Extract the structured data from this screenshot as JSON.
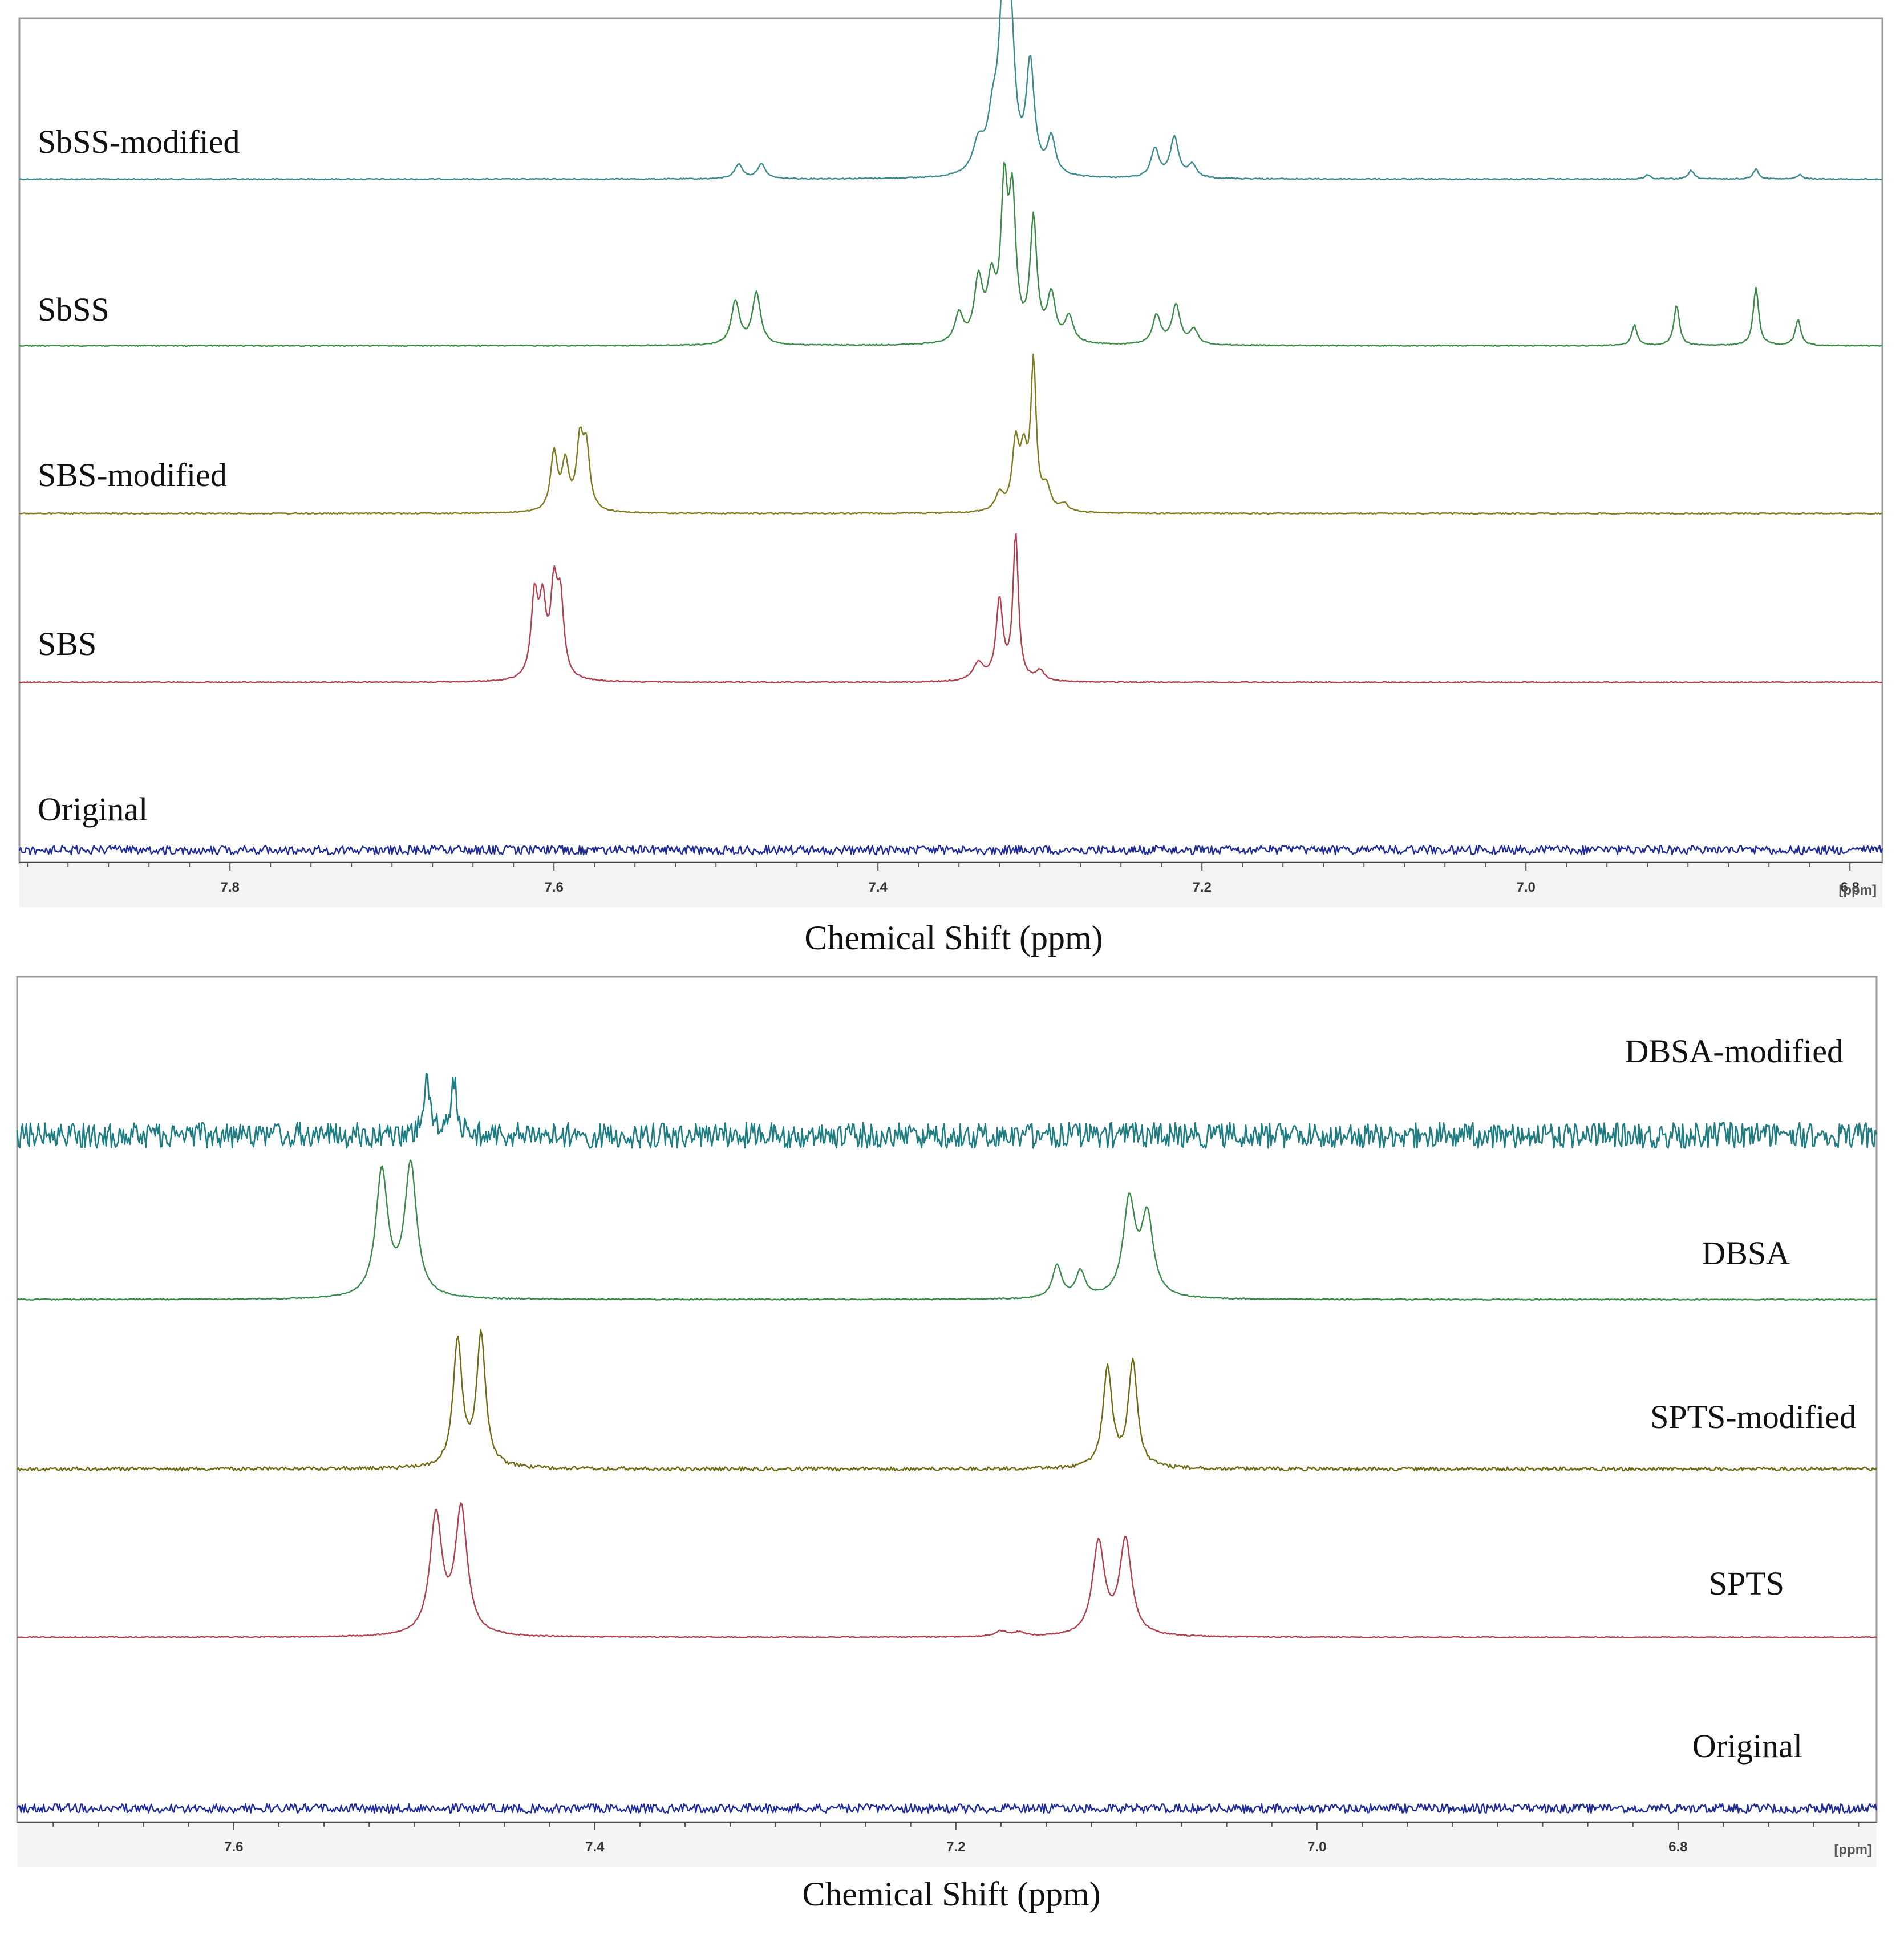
{
  "chart_data": [
    {
      "type": "line",
      "subtype": "stacked NMR spectra",
      "xlabel": "Chemical Shift (ppm)",
      "unit_label": "[ppm]",
      "xlim": [
        7.93,
        6.78
      ],
      "x_axis_reversed": true,
      "ticks": [
        7.8,
        7.6,
        7.4,
        7.2,
        7.0,
        6.8
      ],
      "tick_labels": [
        "7.8",
        "7.6",
        "7.4",
        "7.2",
        "7.0",
        "6.8"
      ],
      "label_side": "left",
      "series": [
        {
          "name": "SbSS-modified",
          "color": "#3a8a8c",
          "noise": 0.3,
          "peaks": [
            {
              "ppm": 7.486,
              "height": 0.1,
              "width": 0.003
            },
            {
              "ppm": 7.472,
              "height": 0.1,
              "width": 0.003
            },
            {
              "ppm": 7.338,
              "height": 0.2,
              "width": 0.004
            },
            {
              "ppm": 7.329,
              "height": 0.34,
              "width": 0.004
            },
            {
              "ppm": 7.323,
              "height": 1.0,
              "width": 0.003
            },
            {
              "ppm": 7.318,
              "height": 0.92,
              "width": 0.003
            },
            {
              "ppm": 7.306,
              "height": 0.75,
              "width": 0.003
            },
            {
              "ppm": 7.293,
              "height": 0.25,
              "width": 0.003
            },
            {
              "ppm": 7.229,
              "height": 0.2,
              "width": 0.003
            },
            {
              "ppm": 7.217,
              "height": 0.28,
              "width": 0.003
            },
            {
              "ppm": 7.206,
              "height": 0.09,
              "width": 0.003
            },
            {
              "ppm": 6.925,
              "height": 0.03,
              "width": 0.002
            },
            {
              "ppm": 6.898,
              "height": 0.06,
              "width": 0.002
            },
            {
              "ppm": 6.858,
              "height": 0.07,
              "width": 0.002
            },
            {
              "ppm": 6.831,
              "height": 0.03,
              "width": 0.002
            }
          ]
        },
        {
          "name": "SbSS",
          "color": "#3c8a48",
          "noise": 0.3,
          "peaks": [
            {
              "ppm": 7.488,
              "height": 0.3,
              "width": 0.003
            },
            {
              "ppm": 7.475,
              "height": 0.36,
              "width": 0.003
            },
            {
              "ppm": 7.35,
              "height": 0.2,
              "width": 0.003
            },
            {
              "ppm": 7.338,
              "height": 0.42,
              "width": 0.003
            },
            {
              "ppm": 7.33,
              "height": 0.38,
              "width": 0.003
            },
            {
              "ppm": 7.322,
              "height": 1.0,
              "width": 0.0025
            },
            {
              "ppm": 7.317,
              "height": 0.92,
              "width": 0.0025
            },
            {
              "ppm": 7.304,
              "height": 0.83,
              "width": 0.0025
            },
            {
              "ppm": 7.293,
              "height": 0.32,
              "width": 0.003
            },
            {
              "ppm": 7.282,
              "height": 0.18,
              "width": 0.003
            },
            {
              "ppm": 7.228,
              "height": 0.2,
              "width": 0.003
            },
            {
              "ppm": 7.216,
              "height": 0.27,
              "width": 0.003
            },
            {
              "ppm": 7.205,
              "height": 0.1,
              "width": 0.003
            },
            {
              "ppm": 6.933,
              "height": 0.14,
              "width": 0.002
            },
            {
              "ppm": 6.907,
              "height": 0.28,
              "width": 0.002
            },
            {
              "ppm": 6.858,
              "height": 0.4,
              "width": 0.002
            },
            {
              "ppm": 6.832,
              "height": 0.18,
              "width": 0.002
            }
          ]
        },
        {
          "name": "SBS-modified",
          "color": "#7e7a1e",
          "noise": 0.3,
          "peaks": [
            {
              "ppm": 7.6,
              "height": 0.4,
              "width": 0.0025
            },
            {
              "ppm": 7.593,
              "height": 0.32,
              "width": 0.0025
            },
            {
              "ppm": 7.584,
              "height": 0.45,
              "width": 0.0025
            },
            {
              "ppm": 7.58,
              "height": 0.4,
              "width": 0.0025
            },
            {
              "ppm": 7.325,
              "height": 0.12,
              "width": 0.003
            },
            {
              "ppm": 7.315,
              "height": 0.45,
              "width": 0.0025
            },
            {
              "ppm": 7.31,
              "height": 0.35,
              "width": 0.0025
            },
            {
              "ppm": 7.304,
              "height": 1.0,
              "width": 0.002
            },
            {
              "ppm": 7.296,
              "height": 0.15,
              "width": 0.003
            },
            {
              "ppm": 7.285,
              "height": 0.05,
              "width": 0.003
            }
          ]
        },
        {
          "name": "SBS",
          "color": "#b0404e",
          "noise": 0.3,
          "peaks": [
            {
              "ppm": 7.612,
              "height": 0.55,
              "width": 0.0025
            },
            {
              "ppm": 7.607,
              "height": 0.48,
              "width": 0.0025
            },
            {
              "ppm": 7.6,
              "height": 0.58,
              "width": 0.0025
            },
            {
              "ppm": 7.596,
              "height": 0.5,
              "width": 0.0025
            },
            {
              "ppm": 7.338,
              "height": 0.12,
              "width": 0.004
            },
            {
              "ppm": 7.325,
              "height": 0.55,
              "width": 0.0025
            },
            {
              "ppm": 7.315,
              "height": 1.0,
              "width": 0.002
            },
            {
              "ppm": 7.3,
              "height": 0.07,
              "width": 0.003
            }
          ]
        },
        {
          "name": "Original",
          "color": "#1f2c9a",
          "noise": 2.5,
          "peaks": []
        }
      ]
    },
    {
      "type": "line",
      "subtype": "stacked NMR spectra",
      "xlabel": "Chemical Shift (ppm)",
      "unit_label": "[ppm]",
      "xlim": [
        7.72,
        6.69
      ],
      "x_axis_reversed": true,
      "ticks": [
        7.6,
        7.4,
        7.2,
        7.0,
        6.8
      ],
      "tick_labels": [
        "7.6",
        "7.4",
        "7.2",
        "7.0",
        "6.8"
      ],
      "label_side": "right",
      "series": [
        {
          "name": "DBSA-modified",
          "color": "#1f7c80",
          "noise": 7.0,
          "peaks": [
            {
              "ppm": 7.493,
              "height": 0.45,
              "width": 0.002
            },
            {
              "ppm": 7.478,
              "height": 0.4,
              "width": 0.002
            }
          ]
        },
        {
          "name": "DBSA",
          "color": "#3a8a4c",
          "noise": 0.3,
          "peaks": [
            {
              "ppm": 7.518,
              "height": 0.95,
              "width": 0.004
            },
            {
              "ppm": 7.502,
              "height": 1.0,
              "width": 0.004
            },
            {
              "ppm": 7.144,
              "height": 0.25,
              "width": 0.003
            },
            {
              "ppm": 7.131,
              "height": 0.2,
              "width": 0.003
            },
            {
              "ppm": 7.104,
              "height": 0.72,
              "width": 0.004
            },
            {
              "ppm": 7.094,
              "height": 0.6,
              "width": 0.004
            }
          ]
        },
        {
          "name": "SPTS-modified",
          "color": "#6e6a14",
          "noise": 1.0,
          "peaks": [
            {
              "ppm": 7.476,
              "height": 0.95,
              "width": 0.003
            },
            {
              "ppm": 7.463,
              "height": 1.0,
              "width": 0.003
            },
            {
              "ppm": 7.116,
              "height": 0.75,
              "width": 0.003
            },
            {
              "ppm": 7.102,
              "height": 0.8,
              "width": 0.003
            }
          ]
        },
        {
          "name": "SPTS",
          "color": "#b0404e",
          "noise": 0.3,
          "peaks": [
            {
              "ppm": 7.488,
              "height": 0.9,
              "width": 0.004
            },
            {
              "ppm": 7.474,
              "height": 0.95,
              "width": 0.004
            },
            {
              "ppm": 7.121,
              "height": 0.7,
              "width": 0.004
            },
            {
              "ppm": 7.106,
              "height": 0.72,
              "width": 0.004
            },
            {
              "ppm": 7.175,
              "height": 0.04,
              "width": 0.004
            },
            {
              "ppm": 7.165,
              "height": 0.03,
              "width": 0.004
            }
          ]
        },
        {
          "name": "Original",
          "color": "#1f2c9a",
          "noise": 2.5,
          "peaks": []
        }
      ]
    }
  ]
}
